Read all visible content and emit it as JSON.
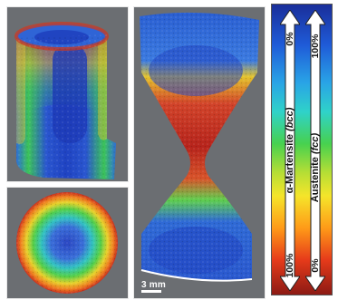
{
  "scale_bar": {
    "label": "3 mm"
  },
  "legend": {
    "left_top_pct": "0%",
    "left_bottom_pct": "100%",
    "left_label_main": "α-Martensite",
    "left_label_phase": "(bcc)",
    "right_top_pct": "100%",
    "right_bottom_pct": "0%",
    "right_label_main": "Austenite",
    "right_label_phase": "(fcc)"
  },
  "colors": {
    "panel_background": "#6b6e72",
    "austenite_blue": "#1f4fd1",
    "martensite_red": "#c8291d",
    "intermediate_green": "#3dc35a"
  }
}
